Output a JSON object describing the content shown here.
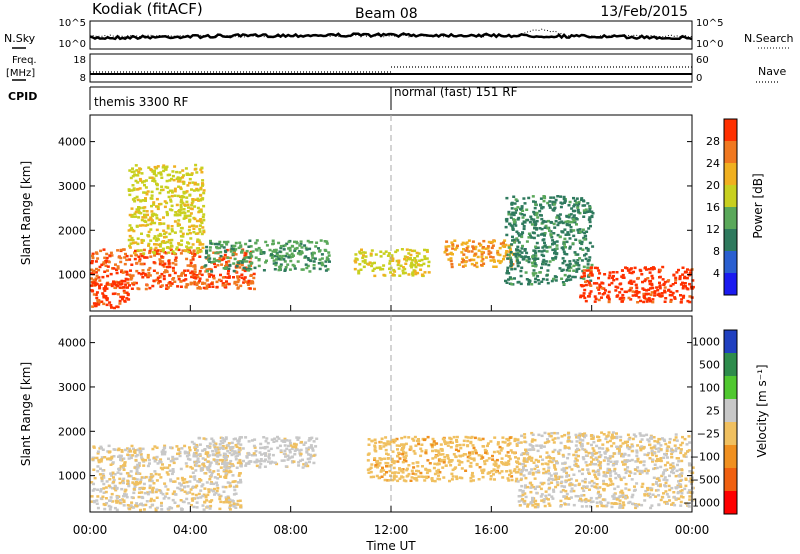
{
  "header": {
    "station": "Kodiak (fitACF)",
    "beam": "Beam 08",
    "date": "13/Feb/2015"
  },
  "strip_labels": {
    "nsky": "N.Sky",
    "nsearch": "N.Search",
    "freq_line1": "Freq.",
    "freq_line2": "[MHz]",
    "nave": "Nave",
    "cpid": "CPID"
  },
  "noise_axis": {
    "left_top": "10^5",
    "left_bottom": "10^0",
    "right_top": "10^5",
    "right_bottom": "10^0"
  },
  "freq_axis": {
    "left_top": "18",
    "left_bottom": "8",
    "right_top": "60",
    "right_bottom": "0"
  },
  "cpid_segments": [
    {
      "label": "themis 3300 RF",
      "start_hour": 0
    },
    {
      "label": "normal (fast) 151 RF",
      "start_hour": 12
    }
  ],
  "power_panel": {
    "ylabel": "Slant Range [km]",
    "cbar_label": "Power [dB]",
    "cbar_ticks": [
      "28",
      "24",
      "20",
      "16",
      "12",
      "8",
      "4"
    ]
  },
  "velocity_panel": {
    "ylabel": "Slant Range [km]",
    "cbar_label": "Velocity [m s⁻¹]",
    "cbar_ticks": [
      "1000",
      "500",
      "100",
      "25",
      "−25",
      "−100",
      "−500",
      "−1000"
    ]
  },
  "xaxis": {
    "label": "Time UT",
    "ticks": [
      "00:00",
      "04:00",
      "08:00",
      "12:00",
      "16:00",
      "20:00",
      "00:00"
    ]
  },
  "chart_data": [
    {
      "type": "heatmap",
      "title": "",
      "xlabel": "Time UT",
      "ylabel": "Slant Range [km]",
      "xlim": [
        0,
        24
      ],
      "ylim": [
        180,
        4600
      ],
      "yticks": [
        1000,
        2000,
        3000,
        4000
      ],
      "zlabel": "Power [dB]",
      "zlim": [
        0,
        30
      ],
      "colorscale": [
        "#1b1bf0",
        "#2a5fd0",
        "#2f7a5e",
        "#5aa85a",
        "#c8d020",
        "#f0b020",
        "#f07820",
        "#ff3000"
      ],
      "regions": [
        {
          "t": [
            0.0,
            6.5
          ],
          "r": [
            700,
            1600
          ],
          "power": 26
        },
        {
          "t": [
            0.0,
            1.5
          ],
          "r": [
            250,
            900
          ],
          "power": 28
        },
        {
          "t": [
            1.5,
            4.5
          ],
          "r": [
            1500,
            3500
          ],
          "power": 18
        },
        {
          "t": [
            4.5,
            9.5
          ],
          "r": [
            1100,
            1800
          ],
          "power": 12
        },
        {
          "t": [
            10.5,
            13.5
          ],
          "r": [
            1000,
            1600
          ],
          "power": 18
        },
        {
          "t": [
            14.0,
            17.0
          ],
          "r": [
            1200,
            1800
          ],
          "power": 22
        },
        {
          "t": [
            16.5,
            20.0
          ],
          "r": [
            800,
            2800
          ],
          "power": 10
        },
        {
          "t": [
            19.5,
            24.0
          ],
          "r": [
            400,
            1200
          ],
          "power": 28
        }
      ]
    },
    {
      "type": "heatmap",
      "title": "",
      "xlabel": "Time UT",
      "ylabel": "Slant Range [km]",
      "xlim": [
        0,
        24
      ],
      "ylim": [
        180,
        4600
      ],
      "yticks": [
        1000,
        2000,
        3000,
        4000
      ],
      "zlabel": "Velocity [m s⁻¹]",
      "zlim": [
        -1000,
        1000
      ],
      "colorscale": [
        "#ff0000",
        "#f06010",
        "#f09020",
        "#f0c060",
        "#c8c8c8",
        "#50c830",
        "#2e8c4c",
        "#2040c0"
      ],
      "regions": [
        {
          "t": [
            0.0,
            6.0
          ],
          "r": [
            250,
            1700
          ],
          "velocity": 0
        },
        {
          "t": [
            4.0,
            9.0
          ],
          "r": [
            1200,
            1900
          ],
          "velocity": 100
        },
        {
          "t": [
            11.0,
            17.0
          ],
          "r": [
            900,
            1900
          ],
          "velocity": -150
        },
        {
          "t": [
            17.0,
            24.0
          ],
          "r": [
            300,
            2000
          ],
          "velocity": 0
        }
      ]
    }
  ]
}
